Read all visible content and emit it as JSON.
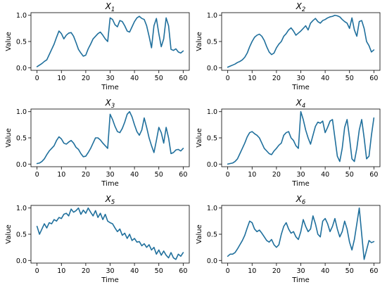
{
  "chart_data": [
    {
      "type": "line",
      "title": "X",
      "title_sub": "1",
      "xlabel": "Time",
      "ylabel": "Value",
      "xlim": [
        -2.5,
        62.5
      ],
      "ylim": [
        -0.05,
        1.05
      ],
      "xticks": [
        0,
        10,
        20,
        30,
        40,
        50,
        60
      ],
      "yticks": [
        0.0,
        0.5,
        1.0
      ],
      "ytick_labels": [
        "0.0",
        "0.5",
        "1.0"
      ],
      "series": [
        {
          "color": "#1f6f9c",
          "x": [
            0,
            1,
            2,
            3,
            4,
            5,
            6,
            7,
            8,
            9,
            10,
            11,
            12,
            13,
            14,
            15,
            16,
            17,
            18,
            19,
            20,
            21,
            22,
            23,
            24,
            25,
            26,
            27,
            28,
            29,
            30,
            31,
            32,
            33,
            34,
            35,
            36,
            37,
            38,
            39,
            40,
            41,
            42,
            43,
            44,
            45,
            46,
            47,
            48,
            49,
            50,
            51,
            52,
            53,
            54,
            55,
            56,
            57,
            58,
            59,
            60
          ],
          "values": [
            0.02,
            0.05,
            0.08,
            0.12,
            0.15,
            0.25,
            0.35,
            0.45,
            0.58,
            0.7,
            0.65,
            0.55,
            0.62,
            0.66,
            0.67,
            0.6,
            0.48,
            0.35,
            0.28,
            0.22,
            0.24,
            0.36,
            0.45,
            0.55,
            0.6,
            0.65,
            0.68,
            0.62,
            0.55,
            0.5,
            0.95,
            0.92,
            0.82,
            0.78,
            0.9,
            0.88,
            0.8,
            0.7,
            0.68,
            0.78,
            0.88,
            0.95,
            0.98,
            0.94,
            0.92,
            0.8,
            0.6,
            0.38,
            0.8,
            0.94,
            0.65,
            0.4,
            0.55,
            0.95,
            0.8,
            0.35,
            0.33,
            0.36,
            0.3,
            0.28,
            0.32
          ]
        }
      ]
    },
    {
      "type": "line",
      "title": "X",
      "title_sub": "2",
      "xlabel": "Time",
      "ylabel": "Value",
      "xlim": [
        -2.5,
        62.5
      ],
      "ylim": [
        -0.05,
        1.05
      ],
      "xticks": [
        0,
        10,
        20,
        30,
        40,
        50,
        60
      ],
      "yticks": [
        0.0,
        0.5,
        1.0
      ],
      "ytick_labels": [
        "0.0",
        "0.5",
        "1.0"
      ],
      "series": [
        {
          "color": "#1f6f9c",
          "x": [
            0,
            1,
            2,
            3,
            4,
            5,
            6,
            7,
            8,
            9,
            10,
            11,
            12,
            13,
            14,
            15,
            16,
            17,
            18,
            19,
            20,
            21,
            22,
            23,
            24,
            25,
            26,
            27,
            28,
            29,
            30,
            31,
            32,
            33,
            34,
            35,
            36,
            37,
            38,
            39,
            40,
            41,
            42,
            43,
            44,
            45,
            46,
            47,
            48,
            49,
            50,
            51,
            52,
            53,
            54,
            55,
            56,
            57,
            58,
            59,
            60
          ],
          "values": [
            0.01,
            0.03,
            0.05,
            0.07,
            0.1,
            0.12,
            0.15,
            0.2,
            0.28,
            0.4,
            0.5,
            0.58,
            0.62,
            0.64,
            0.6,
            0.52,
            0.4,
            0.3,
            0.25,
            0.28,
            0.38,
            0.45,
            0.5,
            0.6,
            0.65,
            0.72,
            0.76,
            0.7,
            0.62,
            0.66,
            0.7,
            0.75,
            0.8,
            0.72,
            0.85,
            0.9,
            0.94,
            0.88,
            0.85,
            0.9,
            0.92,
            0.95,
            0.97,
            0.98,
            1.0,
            0.99,
            0.97,
            0.92,
            0.88,
            0.85,
            0.75,
            0.95,
            0.72,
            0.6,
            0.88,
            0.9,
            0.75,
            0.5,
            0.42,
            0.3,
            0.34
          ]
        }
      ]
    },
    {
      "type": "line",
      "title": "X",
      "title_sub": "3",
      "xlabel": "Time",
      "ylabel": "Value",
      "xlim": [
        -2.5,
        62.5
      ],
      "ylim": [
        -0.05,
        1.05
      ],
      "xticks": [
        0,
        10,
        20,
        30,
        40,
        50,
        60
      ],
      "yticks": [
        0.0,
        0.5,
        1.0
      ],
      "ytick_labels": [
        "0.0",
        "0.5",
        "1.0"
      ],
      "series": [
        {
          "color": "#1f6f9c",
          "x": [
            0,
            1,
            2,
            3,
            4,
            5,
            6,
            7,
            8,
            9,
            10,
            11,
            12,
            13,
            14,
            15,
            16,
            17,
            18,
            19,
            20,
            21,
            22,
            23,
            24,
            25,
            26,
            27,
            28,
            29,
            30,
            31,
            32,
            33,
            34,
            35,
            36,
            37,
            38,
            39,
            40,
            41,
            42,
            43,
            44,
            45,
            46,
            47,
            48,
            49,
            50,
            51,
            52,
            53,
            54,
            55,
            56,
            57,
            58,
            59,
            60
          ],
          "values": [
            0.01,
            0.02,
            0.05,
            0.1,
            0.18,
            0.25,
            0.3,
            0.35,
            0.45,
            0.52,
            0.48,
            0.4,
            0.38,
            0.42,
            0.45,
            0.4,
            0.32,
            0.28,
            0.2,
            0.14,
            0.15,
            0.22,
            0.3,
            0.4,
            0.5,
            0.5,
            0.46,
            0.4,
            0.35,
            0.3,
            0.95,
            0.85,
            0.72,
            0.62,
            0.6,
            0.68,
            0.8,
            0.95,
            1.0,
            0.9,
            0.75,
            0.62,
            0.55,
            0.65,
            0.88,
            0.7,
            0.5,
            0.35,
            0.22,
            0.45,
            0.7,
            0.6,
            0.4,
            0.7,
            0.5,
            0.2,
            0.22,
            0.27,
            0.28,
            0.25,
            0.3
          ]
        }
      ]
    },
    {
      "type": "line",
      "title": "X",
      "title_sub": "4",
      "xlabel": "Time",
      "ylabel": "Value",
      "xlim": [
        -2.5,
        62.5
      ],
      "ylim": [
        -0.05,
        1.05
      ],
      "xticks": [
        0,
        10,
        20,
        30,
        40,
        50,
        60
      ],
      "yticks": [
        0.0,
        0.5,
        1.0
      ],
      "ytick_labels": [
        "0.0",
        "0.5",
        "1.0"
      ],
      "series": [
        {
          "color": "#1f6f9c",
          "x": [
            0,
            1,
            2,
            3,
            4,
            5,
            6,
            7,
            8,
            9,
            10,
            11,
            12,
            13,
            14,
            15,
            16,
            17,
            18,
            19,
            20,
            21,
            22,
            23,
            24,
            25,
            26,
            27,
            28,
            29,
            30,
            31,
            32,
            33,
            34,
            35,
            36,
            37,
            38,
            39,
            40,
            41,
            42,
            43,
            44,
            45,
            46,
            47,
            48,
            49,
            50,
            51,
            52,
            53,
            54,
            55,
            56,
            57,
            58,
            59,
            60
          ],
          "values": [
            0.0,
            0.01,
            0.02,
            0.05,
            0.1,
            0.2,
            0.3,
            0.4,
            0.52,
            0.6,
            0.62,
            0.58,
            0.55,
            0.5,
            0.4,
            0.3,
            0.25,
            0.2,
            0.18,
            0.25,
            0.3,
            0.36,
            0.4,
            0.55,
            0.6,
            0.62,
            0.5,
            0.45,
            0.35,
            0.3,
            1.0,
            0.85,
            0.65,
            0.5,
            0.38,
            0.55,
            0.72,
            0.8,
            0.78,
            0.82,
            0.6,
            0.7,
            0.82,
            0.85,
            0.5,
            0.15,
            0.05,
            0.3,
            0.7,
            0.85,
            0.5,
            0.1,
            0.05,
            0.3,
            0.65,
            0.85,
            0.5,
            0.1,
            0.15,
            0.55,
            0.88
          ]
        }
      ]
    },
    {
      "type": "line",
      "title": "X",
      "title_sub": "5",
      "xlabel": "Time",
      "ylabel": "Value",
      "xlim": [
        -2.5,
        62.5
      ],
      "ylim": [
        -0.05,
        1.05
      ],
      "xticks": [
        0,
        10,
        20,
        30,
        40,
        50,
        60
      ],
      "yticks": [
        0.0,
        0.5,
        1.0
      ],
      "ytick_labels": [
        "0.0",
        "0.5",
        "1.0"
      ],
      "series": [
        {
          "color": "#1f6f9c",
          "x": [
            0,
            1,
            2,
            3,
            4,
            5,
            6,
            7,
            8,
            9,
            10,
            11,
            12,
            13,
            14,
            15,
            16,
            17,
            18,
            19,
            20,
            21,
            22,
            23,
            24,
            25,
            26,
            27,
            28,
            29,
            30,
            31,
            32,
            33,
            34,
            35,
            36,
            37,
            38,
            39,
            40,
            41,
            42,
            43,
            44,
            45,
            46,
            47,
            48,
            49,
            50,
            51,
            52,
            53,
            54,
            55,
            56,
            57,
            58,
            59,
            60
          ],
          "values": [
            0.65,
            0.5,
            0.6,
            0.7,
            0.62,
            0.72,
            0.7,
            0.78,
            0.75,
            0.82,
            0.8,
            0.88,
            0.9,
            0.85,
            0.98,
            0.92,
            0.95,
            1.0,
            0.88,
            0.96,
            0.9,
            1.0,
            0.92,
            0.85,
            0.95,
            0.82,
            0.9,
            0.78,
            0.88,
            0.75,
            0.72,
            0.7,
            0.62,
            0.55,
            0.6,
            0.48,
            0.52,
            0.42,
            0.5,
            0.38,
            0.42,
            0.35,
            0.36,
            0.28,
            0.32,
            0.25,
            0.3,
            0.2,
            0.25,
            0.12,
            0.2,
            0.1,
            0.18,
            0.1,
            0.05,
            0.15,
            0.05,
            0.02,
            0.12,
            0.08,
            0.15
          ]
        }
      ]
    },
    {
      "type": "line",
      "title": "X",
      "title_sub": "6",
      "xlabel": "Time",
      "ylabel": "Value",
      "xlim": [
        -2.5,
        62.5
      ],
      "ylim": [
        -0.05,
        1.05
      ],
      "xticks": [
        0,
        10,
        20,
        30,
        40,
        50,
        60
      ],
      "yticks": [
        0.0,
        0.5,
        1.0
      ],
      "ytick_labels": [
        "0.0",
        "0.5",
        "1.0"
      ],
      "series": [
        {
          "color": "#1f6f9c",
          "x": [
            0,
            1,
            2,
            3,
            4,
            5,
            6,
            7,
            8,
            9,
            10,
            11,
            12,
            13,
            14,
            15,
            16,
            17,
            18,
            19,
            20,
            21,
            22,
            23,
            24,
            25,
            26,
            27,
            28,
            29,
            30,
            31,
            32,
            33,
            34,
            35,
            36,
            37,
            38,
            39,
            40,
            41,
            42,
            43,
            44,
            45,
            46,
            47,
            48,
            49,
            50,
            51,
            52,
            53,
            54,
            55,
            56,
            57,
            58,
            59,
            60
          ],
          "values": [
            0.08,
            0.12,
            0.12,
            0.15,
            0.22,
            0.3,
            0.38,
            0.48,
            0.62,
            0.75,
            0.72,
            0.6,
            0.55,
            0.58,
            0.52,
            0.45,
            0.38,
            0.35,
            0.4,
            0.3,
            0.25,
            0.3,
            0.5,
            0.65,
            0.72,
            0.6,
            0.52,
            0.55,
            0.45,
            0.4,
            0.55,
            0.78,
            0.65,
            0.55,
            0.6,
            0.85,
            0.7,
            0.5,
            0.45,
            0.75,
            0.8,
            0.7,
            0.55,
            0.65,
            0.8,
            0.6,
            0.45,
            0.55,
            0.75,
            0.6,
            0.35,
            0.2,
            0.4,
            0.7,
            1.0,
            0.5,
            0.02,
            0.2,
            0.38,
            0.34,
            0.36
          ]
        }
      ]
    }
  ]
}
